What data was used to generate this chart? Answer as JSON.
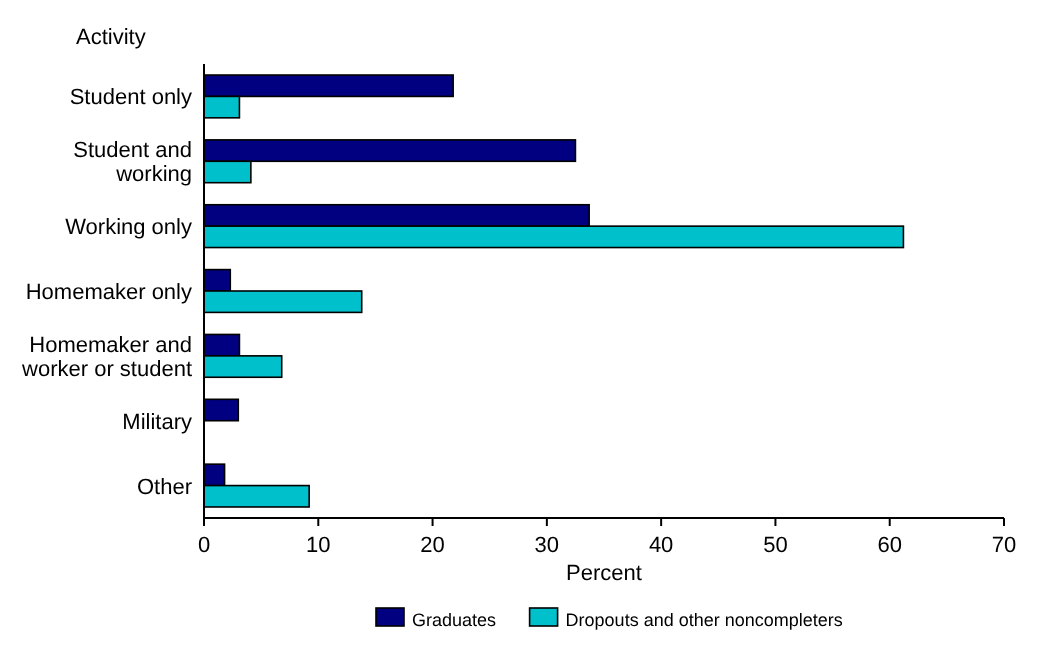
{
  "chart_data": {
    "type": "bar",
    "orientation": "horizontal",
    "ylabel": "Activity",
    "xlabel": "Percent",
    "categories": [
      "Student only",
      "Student and working",
      "Working only",
      "Homemaker only",
      "Homemaker and worker or student",
      "Military",
      "Other"
    ],
    "series": [
      {
        "name": "Graduates",
        "color": "#000080",
        "values": [
          21.8,
          32.5,
          33.7,
          2.3,
          3.1,
          3.0,
          1.8
        ]
      },
      {
        "name": "Dropouts and other noncompleters",
        "color": "#00c0cc",
        "values": [
          3.1,
          4.1,
          61.2,
          13.8,
          6.8,
          null,
          9.2
        ]
      }
    ],
    "xlim": [
      0,
      70
    ],
    "xticks": [
      0,
      10,
      20,
      30,
      40,
      50,
      60,
      70
    ],
    "legend": "bottom",
    "grid": false
  }
}
